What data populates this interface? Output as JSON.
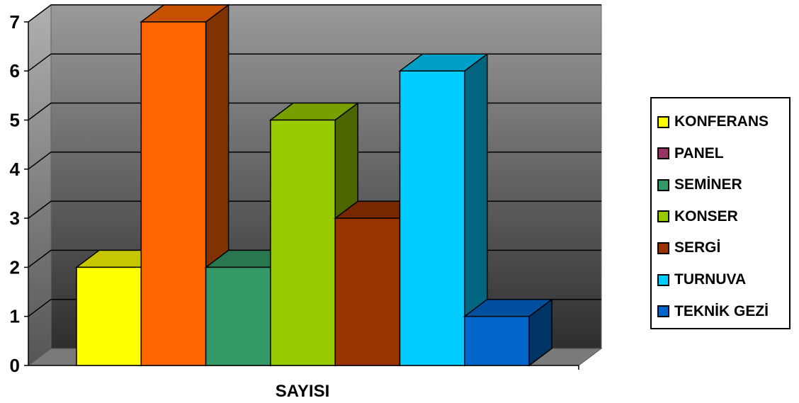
{
  "chart_data": {
    "type": "bar",
    "title": "",
    "xlabel": "",
    "ylabel": "",
    "categories": [
      "SAYISI"
    ],
    "series": [
      {
        "name": "KONFERANS",
        "values": [
          2
        ],
        "color": "#FFFF00"
      },
      {
        "name": "PANEL",
        "values": [
          7
        ],
        "color": "#FF6600"
      },
      {
        "name": "SEMİNER",
        "values": [
          2
        ],
        "color": "#339966"
      },
      {
        "name": "KONSER",
        "values": [
          5
        ],
        "color": "#99CC00"
      },
      {
        "name": "SERGİ",
        "values": [
          3
        ],
        "color": "#993300"
      },
      {
        "name": "TURNUVA",
        "values": [
          6
        ],
        "color": "#00CCFF"
      },
      {
        "name": "TEKNİK GEZİ",
        "values": [
          1
        ],
        "color": "#0066CC"
      }
    ],
    "legend_colors": [
      "#FFFF00",
      "#993366",
      "#339966",
      "#99CC00",
      "#993300",
      "#00CCFF",
      "#0066CC"
    ],
    "ylim": [
      0,
      7
    ],
    "yticks": [
      "0",
      "1",
      "2",
      "3",
      "4",
      "5",
      "6",
      "7"
    ],
    "grid": true,
    "legend_position": "right",
    "style": "3d-column"
  }
}
